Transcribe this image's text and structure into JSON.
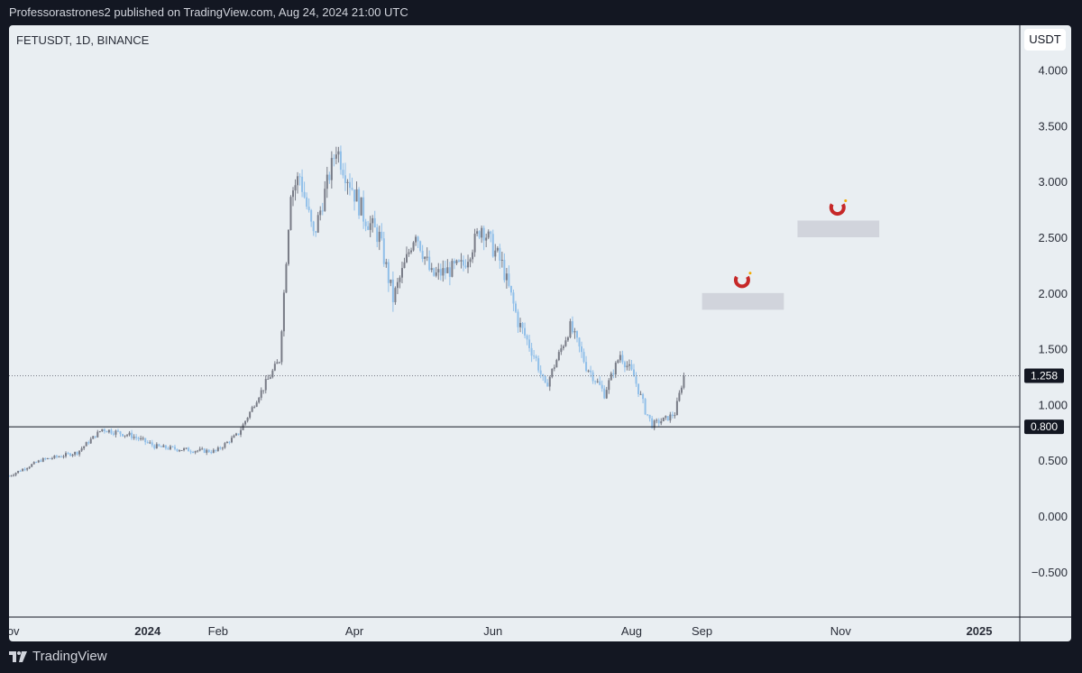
{
  "header": {
    "published_line": "Professorastrones2 published on TradingView.com, Aug 24, 2024 21:00 UTC"
  },
  "chart_header": {
    "symbol_line": "FETUSDT, 1D, BINANCE",
    "currency": "USDT"
  },
  "footer": {
    "brand": "TradingView",
    "logo_icon": "tradingview-logo-icon"
  },
  "colors": {
    "background": "#e9eef2",
    "up_candle": "#787b86",
    "down_candle": "#90bfe9",
    "support_line": "#131722",
    "zone_fill": "#d1d4dc",
    "magnet_red": "#c62828"
  },
  "chart_data": {
    "type": "candlestick",
    "title": "FETUSDT, 1D, BINANCE",
    "y_axis": {
      "unit": "USDT",
      "ticks": [
        "4.000",
        "3.500",
        "3.000",
        "2.500",
        "2.000",
        "1.500",
        "1.000",
        "0.500",
        "0.000",
        "−0.500"
      ],
      "range": [
        -0.85,
        4.6
      ]
    },
    "x_axis": {
      "ticks": [
        "Nov",
        "2024",
        "Feb",
        "Apr",
        "Jun",
        "Aug",
        "Sep",
        "Nov",
        "2025"
      ],
      "bold_ticks": [
        "2024",
        "2025"
      ]
    },
    "price_labels": [
      {
        "label": "1.258",
        "value": 1.258,
        "style": "dotted",
        "meaning": "last price"
      },
      {
        "label": "0.800",
        "value": 0.8,
        "style": "solid",
        "meaning": "support"
      }
    ],
    "target_zones": [
      {
        "low": 1.85,
        "high": 2.0,
        "start": "2024-09-01",
        "end": "2024-10-07",
        "icon": "magnet-icon"
      },
      {
        "low": 2.5,
        "high": 2.65,
        "start": "2024-10-13",
        "end": "2024-11-18",
        "icon": "magnet-icon"
      }
    ],
    "daily_close_keypoints": [
      {
        "date": "2023-11-01",
        "close": 0.36
      },
      {
        "date": "2023-11-15",
        "close": 0.5
      },
      {
        "date": "2023-12-01",
        "close": 0.57
      },
      {
        "date": "2023-12-12",
        "close": 0.78
      },
      {
        "date": "2023-12-25",
        "close": 0.72
      },
      {
        "date": "2024-01-05",
        "close": 0.62
      },
      {
        "date": "2024-01-20",
        "close": 0.59
      },
      {
        "date": "2024-01-31",
        "close": 0.58
      },
      {
        "date": "2024-02-10",
        "close": 0.74
      },
      {
        "date": "2024-02-20",
        "close": 1.12
      },
      {
        "date": "2024-02-28",
        "close": 1.4
      },
      {
        "date": "2024-03-04",
        "close": 2.9
      },
      {
        "date": "2024-03-08",
        "close": 3.05
      },
      {
        "date": "2024-03-14",
        "close": 2.5
      },
      {
        "date": "2024-03-24",
        "close": 3.3
      },
      {
        "date": "2024-03-28",
        "close": 3.1
      },
      {
        "date": "2024-04-05",
        "close": 2.7
      },
      {
        "date": "2024-04-12",
        "close": 2.5
      },
      {
        "date": "2024-04-18",
        "close": 1.95
      },
      {
        "date": "2024-04-28",
        "close": 2.55
      },
      {
        "date": "2024-05-05",
        "close": 2.15
      },
      {
        "date": "2024-05-12",
        "close": 2.2
      },
      {
        "date": "2024-05-19",
        "close": 2.25
      },
      {
        "date": "2024-05-27",
        "close": 2.6
      },
      {
        "date": "2024-06-05",
        "close": 2.25
      },
      {
        "date": "2024-06-12",
        "close": 1.75
      },
      {
        "date": "2024-06-20",
        "close": 1.4
      },
      {
        "date": "2024-06-24",
        "close": 1.15
      },
      {
        "date": "2024-06-30",
        "close": 1.45
      },
      {
        "date": "2024-07-05",
        "close": 1.7
      },
      {
        "date": "2024-07-12",
        "close": 1.35
      },
      {
        "date": "2024-07-20",
        "close": 1.1
      },
      {
        "date": "2024-07-27",
        "close": 1.45
      },
      {
        "date": "2024-08-02",
        "close": 1.25
      },
      {
        "date": "2024-08-07",
        "close": 0.95
      },
      {
        "date": "2024-08-10",
        "close": 0.82
      },
      {
        "date": "2024-08-17",
        "close": 0.88
      },
      {
        "date": "2024-08-20",
        "close": 0.92
      },
      {
        "date": "2024-08-24",
        "close": 1.258
      }
    ]
  }
}
